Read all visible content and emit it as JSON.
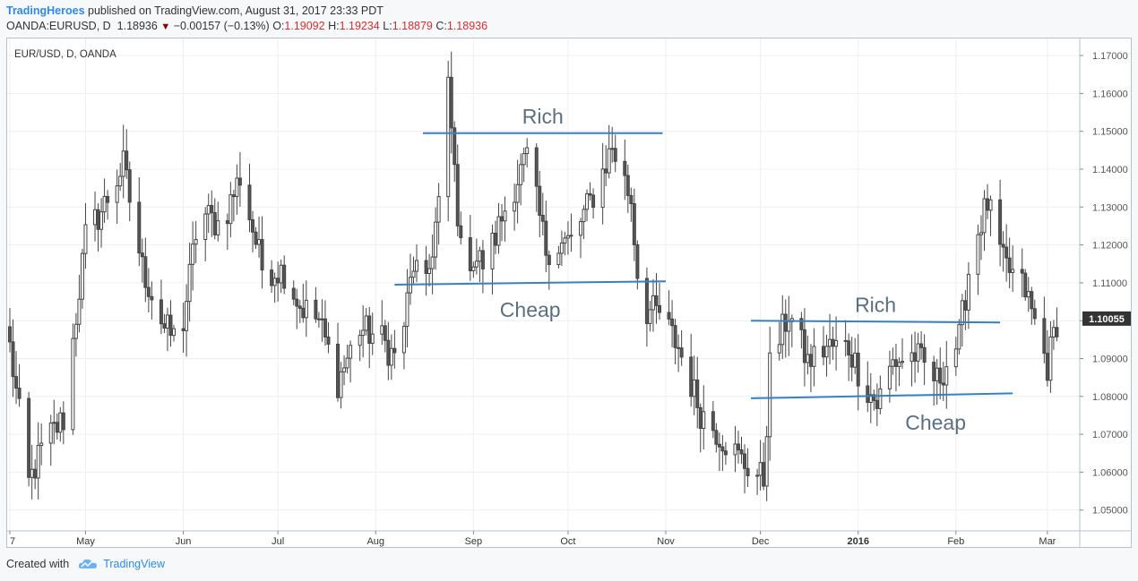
{
  "header": {
    "author": "TradingHeroes",
    "published_text": "published on TradingView.com, August 31, 2017 23:33 PDT",
    "symbol": "OANDA:EURUSD, D",
    "last": "1.18936",
    "change": "−0.00157 (−0.13%)",
    "o_label": "O:",
    "o_value": "1.19092",
    "h_label": "H:",
    "h_value": "1.19234",
    "l_label": "L:",
    "l_value": "1.18879",
    "c_label": "C:",
    "c_value": "1.18936"
  },
  "footer": {
    "created_with": "Created with",
    "brand": "TradingView",
    "logo_icon": "tradingview-cloud-icon"
  },
  "colors": {
    "bull_fill": "#ffffff",
    "bear_fill": "#555555",
    "candle_outline": "#444444",
    "annotation_line": "#3a7fc1",
    "annotation_text": "#5b6f80",
    "price_tag_bg": "#333333",
    "brand_blue": "#2e8ae6"
  },
  "chart_data": {
    "type": "candlestick",
    "title": "EUR/USD, D, OANDA",
    "ylim": [
      1.0445,
      1.1745
    ],
    "y_ticks": [
      "1.05000",
      "1.06000",
      "1.07000",
      "1.08000",
      "1.09000",
      "1.10000",
      "1.11000",
      "1.12000",
      "1.13000",
      "1.14000",
      "1.15000",
      "1.16000",
      "1.17000"
    ],
    "x_ticks": [
      "7",
      "May",
      "Jun",
      "Jul",
      "Aug",
      "Sep",
      "Oct",
      "Nov",
      "Dec",
      "2016",
      "Feb",
      "Mar"
    ],
    "last_price_label": "1.10055",
    "grid": true,
    "annotations": [
      {
        "label": "Rich",
        "from": [
          "2015-08-16",
          1.1495
        ],
        "to": [
          "2015-10-31",
          1.1495
        ]
      },
      {
        "label": "Cheap",
        "from": [
          "2015-08-07",
          1.1095
        ],
        "to": [
          "2015-11-01",
          1.1104
        ]
      },
      {
        "label": "Rich",
        "from": [
          "2015-11-28",
          1.1
        ],
        "to": [
          "2016-02-15",
          1.0995
        ]
      },
      {
        "label": "Cheap",
        "from": [
          "2015-11-28",
          1.0795
        ],
        "to": [
          "2016-02-19",
          1.0808
        ]
      }
    ],
    "waypoints": [
      {
        "d": "2015-04-07",
        "c": 1.093
      },
      {
        "d": "2015-04-13",
        "c": 1.057
      },
      {
        "d": "2015-04-18",
        "c": 1.068
      },
      {
        "d": "2015-04-24",
        "c": 1.074
      },
      {
        "d": "2015-05-01",
        "c": 1.122
      },
      {
        "d": "2015-05-06",
        "c": 1.129
      },
      {
        "d": "2015-05-13",
        "c": 1.141
      },
      {
        "d": "2015-05-19",
        "c": 1.114
      },
      {
        "d": "2015-05-26",
        "c": 1.098
      },
      {
        "d": "2015-05-31",
        "c": 1.094
      },
      {
        "d": "2015-06-06",
        "c": 1.129
      },
      {
        "d": "2015-06-13",
        "c": 1.125
      },
      {
        "d": "2015-06-19",
        "c": 1.138
      },
      {
        "d": "2015-06-26",
        "c": 1.114
      },
      {
        "d": "2015-07-03",
        "c": 1.113
      },
      {
        "d": "2015-07-08",
        "c": 1.104
      },
      {
        "d": "2015-07-14",
        "c": 1.1
      },
      {
        "d": "2015-07-20",
        "c": 1.084
      },
      {
        "d": "2015-07-27",
        "c": 1.098
      },
      {
        "d": "2015-08-03",
        "c": 1.095
      },
      {
        "d": "2015-08-08",
        "c": 1.089
      },
      {
        "d": "2015-08-13",
        "c": 1.115
      },
      {
        "d": "2015-08-17",
        "c": 1.108
      },
      {
        "d": "2015-08-22",
        "c": 1.137
      },
      {
        "d": "2015-08-24",
        "c": 1.161
      },
      {
        "d": "2015-08-28",
        "c": 1.118
      },
      {
        "d": "2015-09-05",
        "c": 1.115
      },
      {
        "d": "2015-09-12",
        "c": 1.132
      },
      {
        "d": "2015-09-18",
        "c": 1.143
      },
      {
        "d": "2015-09-24",
        "c": 1.119
      },
      {
        "d": "2015-10-02",
        "c": 1.121
      },
      {
        "d": "2015-10-10",
        "c": 1.135
      },
      {
        "d": "2015-10-15",
        "c": 1.146
      },
      {
        "d": "2015-10-21",
        "c": 1.132
      },
      {
        "d": "2015-10-24",
        "c": 1.103
      },
      {
        "d": "2015-10-30",
        "c": 1.102
      },
      {
        "d": "2015-11-05",
        "c": 1.093
      },
      {
        "d": "2015-11-12",
        "c": 1.076
      },
      {
        "d": "2015-11-19",
        "c": 1.069
      },
      {
        "d": "2015-11-25",
        "c": 1.063
      },
      {
        "d": "2015-12-02",
        "c": 1.058
      },
      {
        "d": "2015-12-04",
        "c": 1.088
      },
      {
        "d": "2015-12-10",
        "c": 1.102
      },
      {
        "d": "2015-12-16",
        "c": 1.089
      },
      {
        "d": "2015-12-22",
        "c": 1.093
      },
      {
        "d": "2015-12-29",
        "c": 1.093
      },
      {
        "d": "2016-01-03",
        "c": 1.083
      },
      {
        "d": "2016-01-07",
        "c": 1.078
      },
      {
        "d": "2016-01-12",
        "c": 1.089
      },
      {
        "d": "2016-01-19",
        "c": 1.091
      },
      {
        "d": "2016-01-26",
        "c": 1.084
      },
      {
        "d": "2016-02-02",
        "c": 1.095
      },
      {
        "d": "2016-02-06",
        "c": 1.119
      },
      {
        "d": "2016-02-11",
        "c": 1.131
      },
      {
        "d": "2016-02-16",
        "c": 1.115
      },
      {
        "d": "2016-02-23",
        "c": 1.108
      },
      {
        "d": "2016-03-01",
        "c": 1.088
      },
      {
        "d": "2016-03-04",
        "c": 1.1
      }
    ]
  }
}
